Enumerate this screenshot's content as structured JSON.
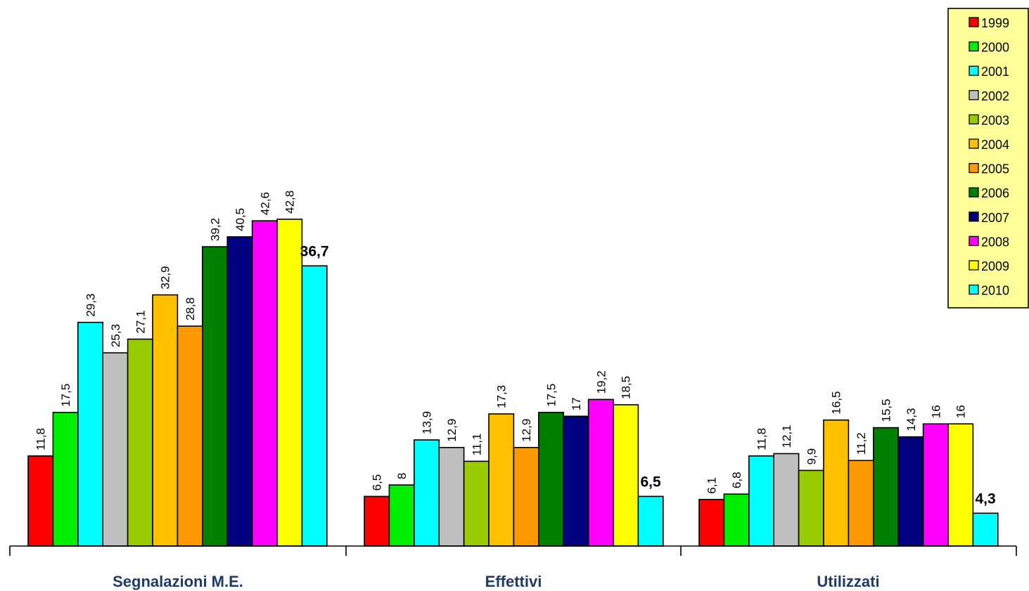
{
  "chart_data": {
    "type": "bar",
    "categories": [
      "Segnalazioni M.E.",
      "Effettivi",
      "Utilizzati"
    ],
    "series": [
      {
        "name": "1999",
        "color": "#FF0000",
        "values": [
          11.8,
          6.5,
          6.1
        ],
        "labels": [
          "11,8",
          "6,5",
          "6,1"
        ]
      },
      {
        "name": "2000",
        "color": "#00EE00",
        "values": [
          17.5,
          8,
          6.8
        ],
        "labels": [
          "17,5",
          "8",
          "6,8"
        ]
      },
      {
        "name": "2001",
        "color": "#00FFFF",
        "values": [
          29.3,
          13.9,
          11.8
        ],
        "labels": [
          "29,3",
          "13,9",
          "11,8"
        ]
      },
      {
        "name": "2002",
        "color": "#C0C0C0",
        "values": [
          25.3,
          12.9,
          12.1
        ],
        "labels": [
          "25,3",
          "12,9",
          "12,1"
        ]
      },
      {
        "name": "2003",
        "color": "#99CC00",
        "values": [
          27.1,
          11.1,
          9.9
        ],
        "labels": [
          "27,1",
          "11,1",
          "9,9"
        ]
      },
      {
        "name": "2004",
        "color": "#FFC000",
        "values": [
          32.9,
          17.3,
          16.5
        ],
        "labels": [
          "32,9",
          "17,3",
          "16,5"
        ]
      },
      {
        "name": "2005",
        "color": "#FF9900",
        "values": [
          28.8,
          12.9,
          11.2
        ],
        "labels": [
          "28,8",
          "12,9",
          "11,2"
        ]
      },
      {
        "name": "2006",
        "color": "#008000",
        "values": [
          39.2,
          17.5,
          15.5
        ],
        "labels": [
          "39,2",
          "17,5",
          "15,5"
        ]
      },
      {
        "name": "2007",
        "color": "#000080",
        "values": [
          40.5,
          17,
          14.3
        ],
        "labels": [
          "40,5",
          "17",
          "14,3"
        ]
      },
      {
        "name": "2008",
        "color": "#FF00FF",
        "values": [
          42.6,
          19.2,
          16
        ],
        "labels": [
          "42,6",
          "19,2",
          "16"
        ]
      },
      {
        "name": "2009",
        "color": "#FFFF00",
        "values": [
          42.8,
          18.5,
          16
        ],
        "labels": [
          "42,8",
          "18,5",
          "16"
        ]
      },
      {
        "name": "2010",
        "color": "#00FFFF",
        "values": [
          36.7,
          6.5,
          4.3
        ],
        "labels": [
          "36,7",
          "6,5",
          "4,3"
        ]
      }
    ],
    "ylim": [
      0,
      48.5
    ],
    "legend": "top-right",
    "legend_background": "#FFFF99",
    "category_label_color": "#1F3A6B",
    "grid": false
  }
}
